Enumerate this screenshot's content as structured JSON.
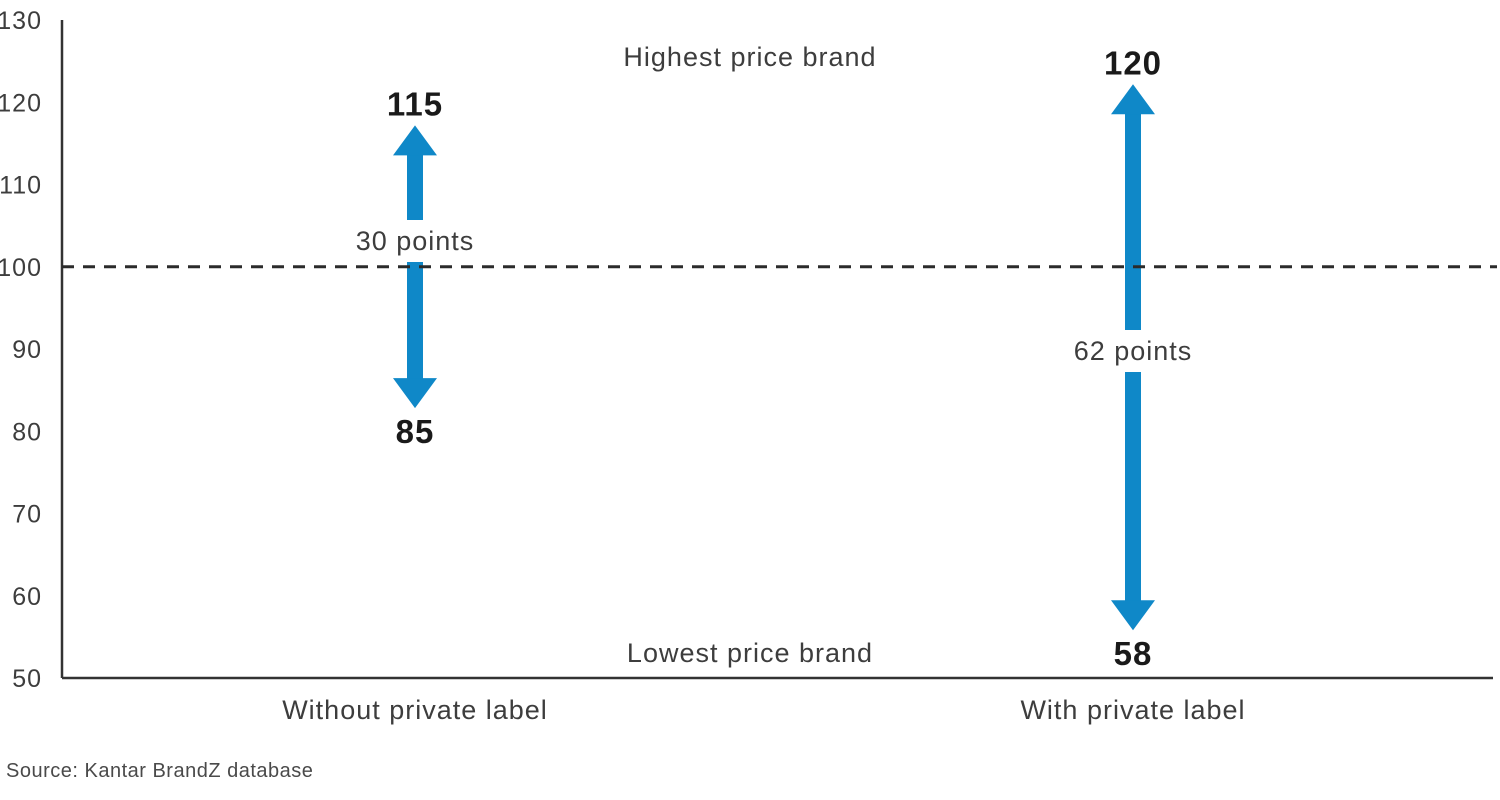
{
  "chart_data": {
    "type": "range-arrow",
    "title": "",
    "xlabel": "",
    "ylabel": "",
    "ylim": [
      50,
      130
    ],
    "yticks": [
      130,
      120,
      110,
      100,
      90,
      80,
      70,
      60,
      50
    ],
    "reference_line": 100,
    "grid": "off",
    "legend": "none",
    "arrow_color": "#0f88c8",
    "axis_color": "#333333",
    "annotations": {
      "highest": "Highest price brand",
      "lowest": "Lowest price brand"
    },
    "categories": [
      "Without private label",
      "With private label"
    ],
    "series": [
      {
        "category": "Without private label",
        "high": 115,
        "low": 85,
        "range_points": 30,
        "range_label": "30 points"
      },
      {
        "category": "With private label",
        "high": 120,
        "low": 58,
        "range_points": 62,
        "range_label": "62 points"
      }
    ]
  },
  "source": "Source: Kantar BrandZ database"
}
